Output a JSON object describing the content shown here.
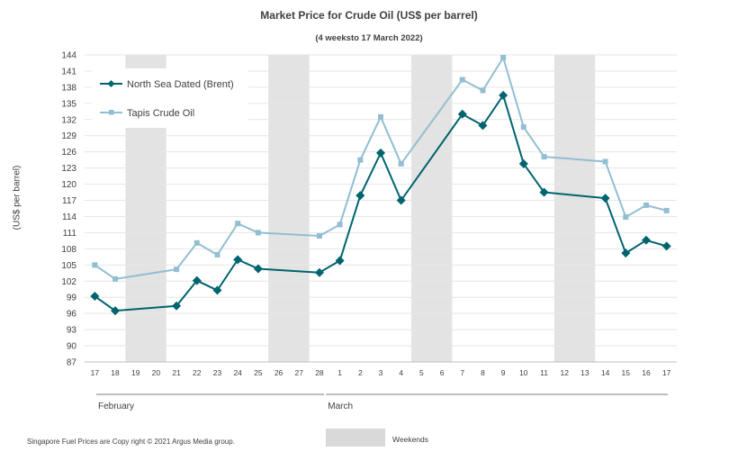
{
  "chart_data": {
    "type": "line",
    "title": "Market Price for Crude  Oil (US$ per barrel)",
    "subtitle": "(4 weeksto 17 March 2022)",
    "xlabel": "",
    "ylabel": "(US$ per barrel)",
    "ylim": [
      87,
      144
    ],
    "yticks": [
      87,
      90,
      93,
      96,
      99,
      102,
      105,
      108,
      111,
      114,
      117,
      120,
      123,
      126,
      129,
      132,
      135,
      138,
      141,
      144
    ],
    "categories": [
      "17",
      "18",
      "19",
      "20",
      "21",
      "22",
      "23",
      "24",
      "25",
      "26",
      "27",
      "28",
      "1",
      "2",
      "3",
      "4",
      "5",
      "6",
      "7",
      "8",
      "9",
      "10",
      "11",
      "12",
      "13",
      "14",
      "15",
      "16",
      "17"
    ],
    "month_groups": [
      {
        "label": "February",
        "start": 0,
        "end": 11
      },
      {
        "label": "March",
        "start": 12,
        "end": 28
      }
    ],
    "weekend_indices": [
      2,
      3,
      9,
      10,
      16,
      17,
      23,
      24
    ],
    "grid": true,
    "legend_position": "top-left",
    "series": [
      {
        "name": "North Sea Dated (Brent)",
        "color": "#00646e",
        "marker": "diamond",
        "values": [
          99.2,
          96.5,
          null,
          null,
          97.4,
          102.1,
          100.3,
          106.0,
          104.3,
          null,
          null,
          103.6,
          105.8,
          117.9,
          125.8,
          117.0,
          null,
          null,
          133.0,
          130.9,
          136.5,
          123.8,
          118.5,
          null,
          null,
          117.4,
          107.2,
          109.6,
          108.5
        ]
      },
      {
        "name": "Tapis Crude Oil",
        "color": "#92bed2",
        "marker": "square",
        "values": [
          105.0,
          102.4,
          null,
          null,
          104.2,
          109.1,
          106.9,
          112.7,
          111.0,
          null,
          null,
          110.4,
          112.5,
          124.5,
          132.5,
          123.8,
          null,
          null,
          139.4,
          137.4,
          143.5,
          130.6,
          125.1,
          null,
          null,
          124.2,
          113.9,
          116.1,
          115.1
        ]
      }
    ]
  },
  "legend": {
    "weekends_label": "Weekends"
  },
  "footer": {
    "copyright": "Singapore  Fuel Prices are  Copy right © 2021 Argus Media  group."
  }
}
